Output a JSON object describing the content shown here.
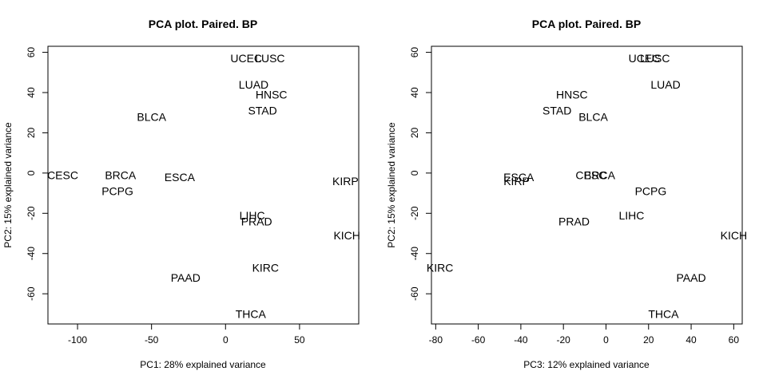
{
  "chart_data": [
    {
      "type": "scatter",
      "title": "PCA plot. Paired. BP",
      "xlabel": "PC1: 28% explained variance",
      "ylabel": "PC2: 15% explained variance",
      "xlim": [
        -120,
        90
      ],
      "ylim": [
        -75,
        63
      ],
      "xticks": [
        -100,
        -50,
        0,
        50
      ],
      "yticks": [
        -60,
        -40,
        -20,
        0,
        20,
        40,
        60
      ],
      "points": [
        {
          "label": "UCEC",
          "x": 14,
          "y": 57
        },
        {
          "label": "LUSC",
          "x": 30,
          "y": 57
        },
        {
          "label": "LUAD",
          "x": 19,
          "y": 44
        },
        {
          "label": "HNSC",
          "x": 31,
          "y": 39
        },
        {
          "label": "STAD",
          "x": 25,
          "y": 31
        },
        {
          "label": "BLCA",
          "x": -50,
          "y": 28
        },
        {
          "label": "CESC",
          "x": -110,
          "y": -1
        },
        {
          "label": "BRCA",
          "x": -71,
          "y": -1
        },
        {
          "label": "ESCA",
          "x": -31,
          "y": -2
        },
        {
          "label": "PCPG",
          "x": -73,
          "y": -9
        },
        {
          "label": "KIRP",
          "x": 81,
          "y": -4
        },
        {
          "label": "LIHC",
          "x": 18,
          "y": -21
        },
        {
          "label": "PRAD",
          "x": 21,
          "y": -24
        },
        {
          "label": "KICH",
          "x": 82,
          "y": -31
        },
        {
          "label": "KIRC",
          "x": 27,
          "y": -47
        },
        {
          "label": "PAAD",
          "x": -27,
          "y": -52
        },
        {
          "label": "THCA",
          "x": 17,
          "y": -70
        }
      ]
    },
    {
      "type": "scatter",
      "title": "PCA plot. Paired. BP",
      "xlabel": "PC3: 12% explained variance",
      "ylabel": "PC2: 15% explained variance",
      "xlim": [
        -82,
        64
      ],
      "ylim": [
        -75,
        63
      ],
      "xticks": [
        -80,
        -60,
        -40,
        -20,
        0,
        20,
        40,
        60
      ],
      "yticks": [
        -60,
        -40,
        -20,
        0,
        20,
        40,
        60
      ],
      "points": [
        {
          "label": "UCEC",
          "x": 18,
          "y": 57
        },
        {
          "label": "LUSC",
          "x": 23,
          "y": 57
        },
        {
          "label": "LUAD",
          "x": 28,
          "y": 44
        },
        {
          "label": "HNSC",
          "x": -16,
          "y": 39
        },
        {
          "label": "STAD",
          "x": -23,
          "y": 31
        },
        {
          "label": "BLCA",
          "x": -6,
          "y": 28
        },
        {
          "label": "ESCA",
          "x": -41,
          "y": -2
        },
        {
          "label": "KIRP",
          "x": -42,
          "y": -4
        },
        {
          "label": "CESC",
          "x": -7,
          "y": -1
        },
        {
          "label": "BRCA",
          "x": -3,
          "y": -1
        },
        {
          "label": "PCPG",
          "x": 21,
          "y": -9
        },
        {
          "label": "LIHC",
          "x": 12,
          "y": -21
        },
        {
          "label": "PRAD",
          "x": -15,
          "y": -24
        },
        {
          "label": "KICH",
          "x": 60,
          "y": -31
        },
        {
          "label": "KIRC",
          "x": -78,
          "y": -47
        },
        {
          "label": "PAAD",
          "x": 40,
          "y": -52
        },
        {
          "label": "THCA",
          "x": 27,
          "y": -70
        }
      ]
    }
  ]
}
